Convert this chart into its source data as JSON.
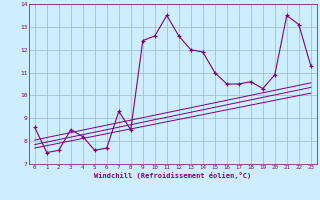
{
  "xlabel": "Windchill (Refroidissement éolien,°C)",
  "x_values": [
    0,
    1,
    2,
    3,
    4,
    5,
    6,
    7,
    8,
    9,
    10,
    11,
    12,
    13,
    14,
    15,
    16,
    17,
    18,
    19,
    20,
    21,
    22,
    23
  ],
  "main_line": [
    8.6,
    7.5,
    7.6,
    8.5,
    8.2,
    7.6,
    7.7,
    9.3,
    8.5,
    12.4,
    12.6,
    13.5,
    12.6,
    12.0,
    11.9,
    11.0,
    10.5,
    10.5,
    10.6,
    10.3,
    10.9,
    13.5,
    13.1,
    11.3
  ],
  "reg_lines": [
    [
      [
        0,
        23
      ],
      [
        7.7,
        10.1
      ]
    ],
    [
      [
        0,
        23
      ],
      [
        7.85,
        10.35
      ]
    ],
    [
      [
        0,
        23
      ],
      [
        8.05,
        10.55
      ]
    ]
  ],
  "line_color": "#800080",
  "bg_color": "#cceeff",
  "grid_color": "#9bb8cc",
  "ylim": [
    7,
    14
  ],
  "xlim": [
    -0.5,
    23.5
  ],
  "yticks": [
    7,
    8,
    9,
    10,
    11,
    12,
    13,
    14
  ],
  "xticks": [
    0,
    1,
    2,
    3,
    4,
    5,
    6,
    7,
    8,
    9,
    10,
    11,
    12,
    13,
    14,
    15,
    16,
    17,
    18,
    19,
    20,
    21,
    22,
    23
  ]
}
